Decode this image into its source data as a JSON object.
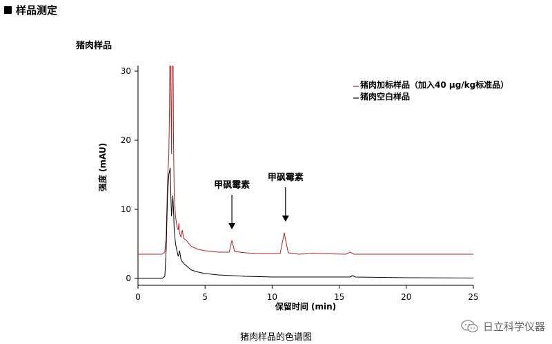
{
  "header": {
    "title": "样品测定"
  },
  "sample_title": "猪肉样品",
  "caption": "猪肉样品的色谱图",
  "watermark": {
    "text": "日立科学仪器",
    "icon": "wechat-icon"
  },
  "chart_data": {
    "type": "line",
    "xlabel": "保留时间 (min)",
    "ylabel": "强度 (mAU)",
    "xlim": [
      0,
      25
    ],
    "ylim": [
      0,
      30
    ],
    "x_ticks": [
      0,
      5,
      10,
      15,
      20,
      25
    ],
    "y_ticks": [
      0,
      10,
      20,
      30
    ],
    "grid": false,
    "legend_position": "top-right",
    "series": [
      {
        "name": "猪肉加标样品（加入40 μg/kg标准品）",
        "color": "#b22222",
        "points": [
          [
            0,
            3.5
          ],
          [
            1.8,
            3.5
          ],
          [
            2.0,
            3.8
          ],
          [
            2.1,
            6
          ],
          [
            2.2,
            14
          ],
          [
            2.3,
            18
          ],
          [
            2.35,
            25
          ],
          [
            2.4,
            40
          ],
          [
            2.45,
            28
          ],
          [
            2.5,
            18
          ],
          [
            2.55,
            35
          ],
          [
            2.6,
            40
          ],
          [
            2.65,
            20
          ],
          [
            2.7,
            12
          ],
          [
            2.8,
            9
          ],
          [
            2.9,
            7.5
          ],
          [
            3.0,
            7
          ],
          [
            3.05,
            8
          ],
          [
            3.1,
            6.5
          ],
          [
            3.2,
            6
          ],
          [
            3.3,
            7
          ],
          [
            3.4,
            5.8
          ],
          [
            3.6,
            5.5
          ],
          [
            3.8,
            5
          ],
          [
            4.0,
            4.6
          ],
          [
            4.5,
            4.2
          ],
          [
            5,
            4.0
          ],
          [
            5.5,
            3.9
          ],
          [
            6,
            3.8
          ],
          [
            6.8,
            3.8
          ],
          [
            7.0,
            5.5
          ],
          [
            7.2,
            3.9
          ],
          [
            8,
            3.7
          ],
          [
            9,
            3.6
          ],
          [
            10.6,
            3.6
          ],
          [
            10.9,
            6.6
          ],
          [
            11.2,
            3.7
          ],
          [
            12,
            3.5
          ],
          [
            13,
            3.6
          ],
          [
            15.5,
            3.5
          ],
          [
            15.8,
            3.8
          ],
          [
            16.1,
            3.5
          ],
          [
            20,
            3.5
          ],
          [
            25,
            3.5
          ]
        ]
      },
      {
        "name": "猪肉空白样品",
        "color": "#000000",
        "points": [
          [
            0,
            0
          ],
          [
            1.8,
            0
          ],
          [
            2.0,
            0.3
          ],
          [
            2.1,
            4
          ],
          [
            2.2,
            12
          ],
          [
            2.3,
            15
          ],
          [
            2.4,
            16
          ],
          [
            2.45,
            12
          ],
          [
            2.5,
            9
          ],
          [
            2.6,
            12
          ],
          [
            2.65,
            10
          ],
          [
            2.7,
            7
          ],
          [
            2.8,
            5
          ],
          [
            2.9,
            4
          ],
          [
            3.0,
            3.2
          ],
          [
            3.1,
            4
          ],
          [
            3.2,
            2.8
          ],
          [
            3.3,
            2.4
          ],
          [
            3.5,
            2
          ],
          [
            3.8,
            1.5
          ],
          [
            4.0,
            1.2
          ],
          [
            4.5,
            0.9
          ],
          [
            5,
            0.7
          ],
          [
            6,
            0.5
          ],
          [
            7,
            0.4
          ],
          [
            8,
            0.3
          ],
          [
            10,
            0.2
          ],
          [
            15.8,
            0.2
          ],
          [
            16,
            0.4
          ],
          [
            16.2,
            0.2
          ],
          [
            20,
            0.1
          ],
          [
            25,
            0.05
          ]
        ]
      }
    ],
    "annotations": [
      {
        "text": "甲砜霉素",
        "x": 7.0,
        "y": 6.5
      },
      {
        "text": "甲砜霉素",
        "x": 11.0,
        "y": 7.6
      }
    ]
  }
}
